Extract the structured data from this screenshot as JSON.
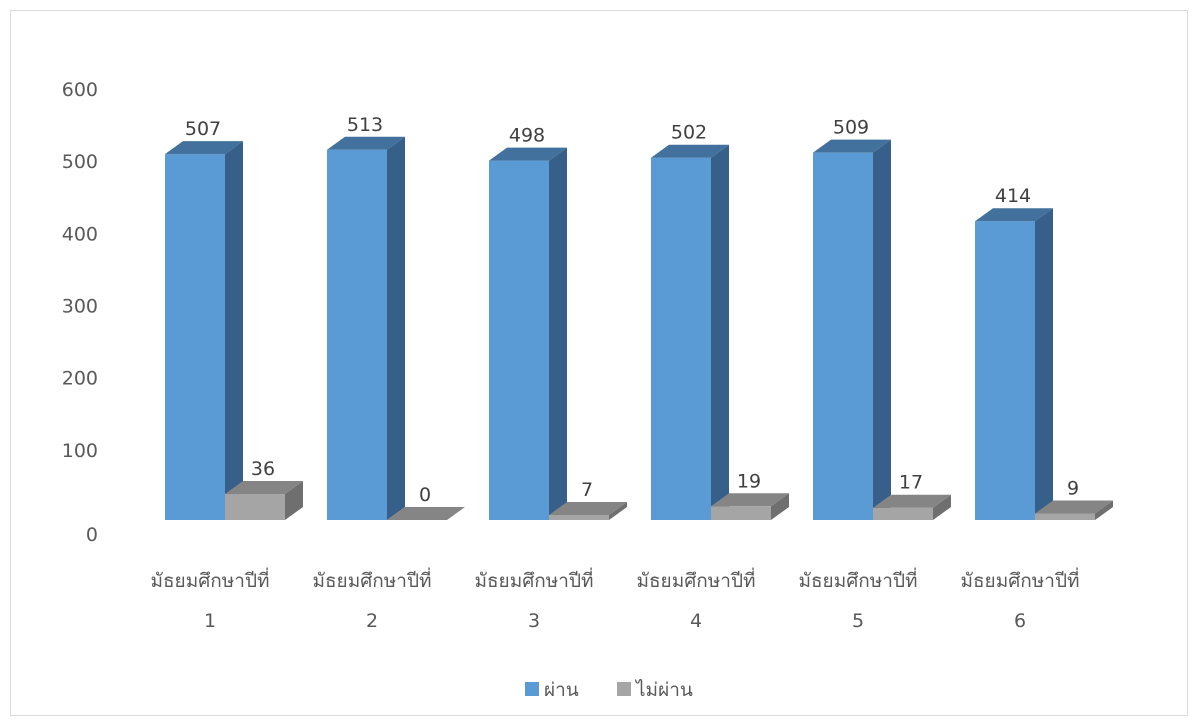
{
  "chart_data": {
    "type": "bar",
    "title": "",
    "xlabel": "",
    "ylabel": "",
    "ylim": [
      0,
      600
    ],
    "yticks": [
      0,
      100,
      200,
      300,
      400,
      500,
      600
    ],
    "categories": [
      [
        "มัธยมศึกษาปีที่",
        "1"
      ],
      [
        "มัธยมศึกษาปีที่",
        "2"
      ],
      [
        "มัธยมศึกษาปีที่",
        "3"
      ],
      [
        "มัธยมศึกษาปีที่",
        "4"
      ],
      [
        "มัธยมศึกษาปีที่",
        "5"
      ],
      [
        "มัธยมศึกษาปีที่",
        "6"
      ]
    ],
    "series": [
      {
        "name": "ผ่าน",
        "values": [
          507,
          513,
          498,
          502,
          509,
          414
        ],
        "color": "#5b9bd5",
        "side_color": "#365f8a",
        "top_color": "#41719c"
      },
      {
        "name": "ไม่ผ่าน",
        "values": [
          36,
          0,
          7,
          19,
          17,
          9
        ],
        "color": "#a5a5a5",
        "side_color": "#6f6f6f",
        "top_color": "#858585"
      }
    ],
    "grid": false,
    "legend": "bottom",
    "style": "3d-column"
  }
}
